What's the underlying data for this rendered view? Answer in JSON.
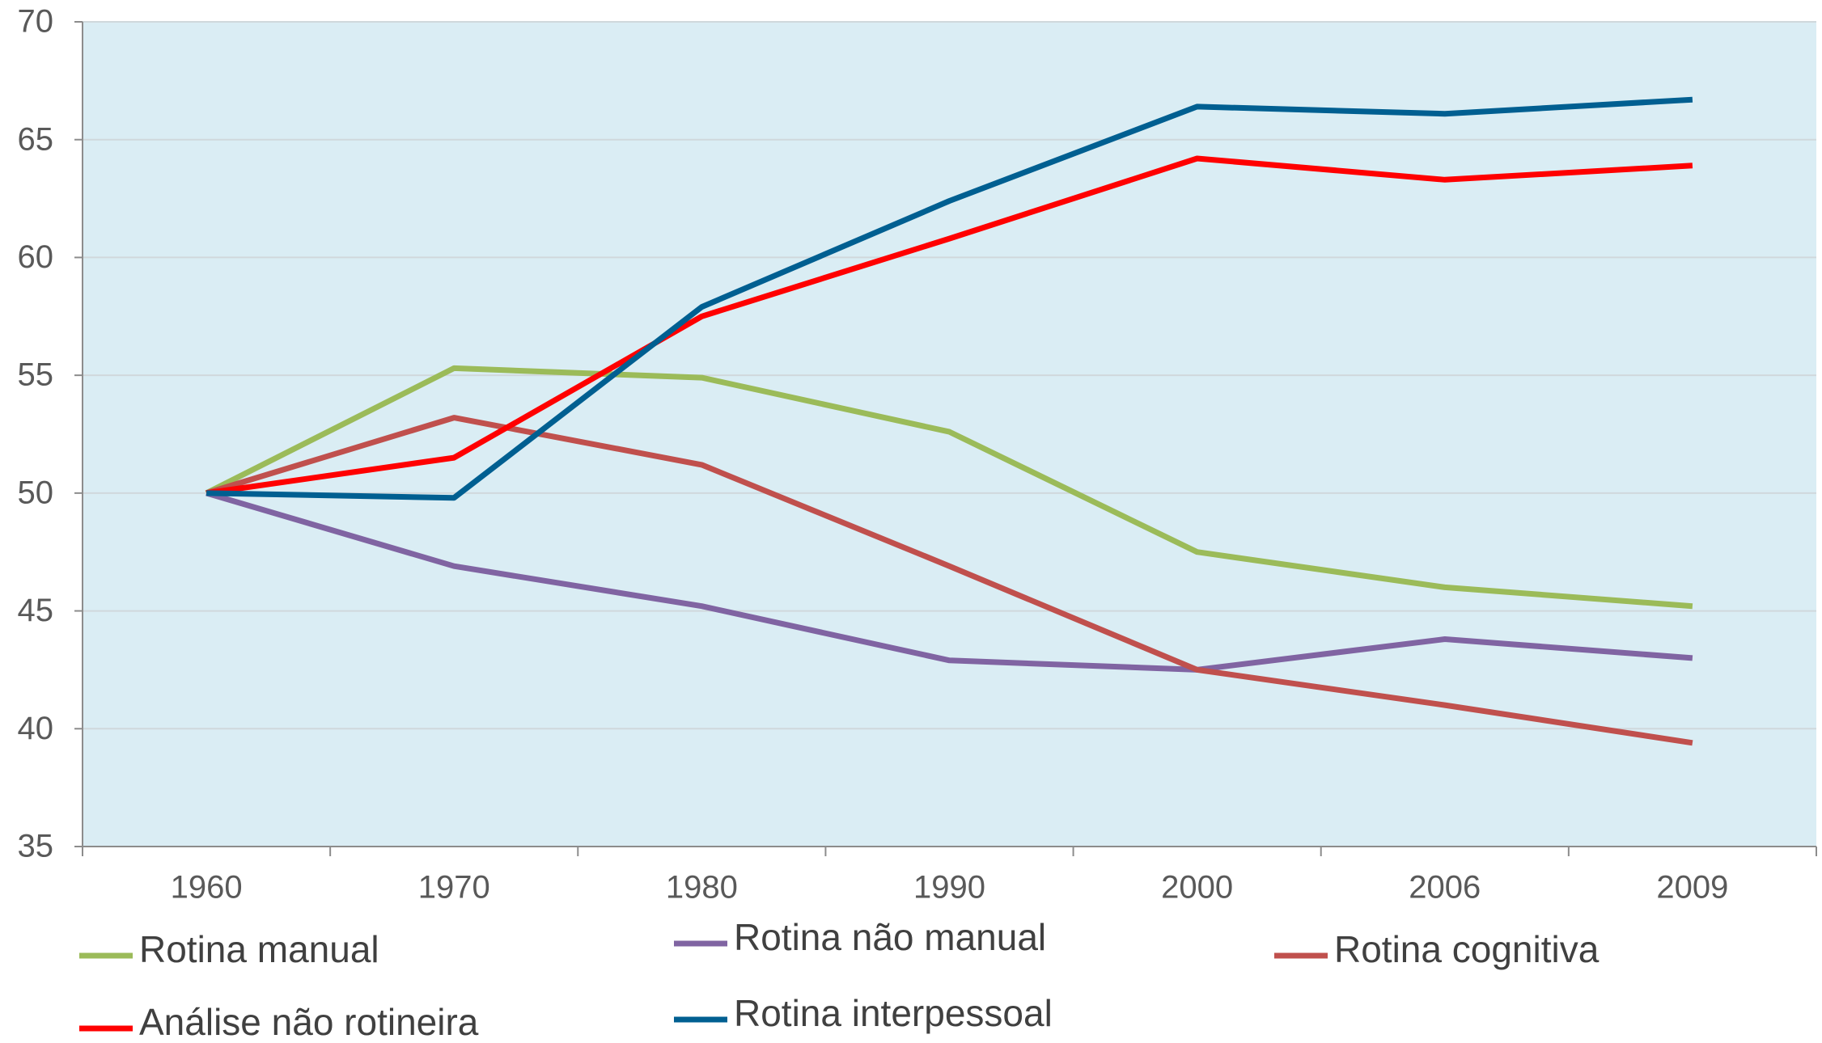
{
  "chart_data": {
    "type": "line",
    "categories": [
      "1960",
      "1970",
      "1980",
      "1990",
      "2000",
      "2006",
      "2009"
    ],
    "series": [
      {
        "name": "Rotina manual",
        "color": "#9bbb59",
        "values": [
          50,
          55.3,
          54.9,
          52.6,
          47.5,
          46.0,
          45.2
        ]
      },
      {
        "name": "Rotina não manual",
        "color": "#8064a2",
        "values": [
          50,
          46.9,
          45.2,
          42.9,
          42.5,
          43.8,
          43.0
        ]
      },
      {
        "name": "Rotina cognitiva",
        "color": "#c0504d",
        "values": [
          50,
          53.2,
          51.2,
          46.9,
          42.5,
          41.0,
          39.4
        ]
      },
      {
        "name": "Análise não rotineira",
        "color": "#ff0000",
        "values": [
          50,
          51.5,
          57.5,
          60.8,
          64.2,
          63.3,
          63.9
        ]
      },
      {
        "name": "Rotina interpessoal",
        "color": "#005f91",
        "values": [
          50,
          49.8,
          57.9,
          62.4,
          66.4,
          66.1,
          66.7
        ]
      }
    ],
    "ylim": [
      35,
      70
    ],
    "yticks": [
      35,
      40,
      45,
      50,
      55,
      60,
      65,
      70
    ],
    "grid": true,
    "background": "#daedf4"
  }
}
